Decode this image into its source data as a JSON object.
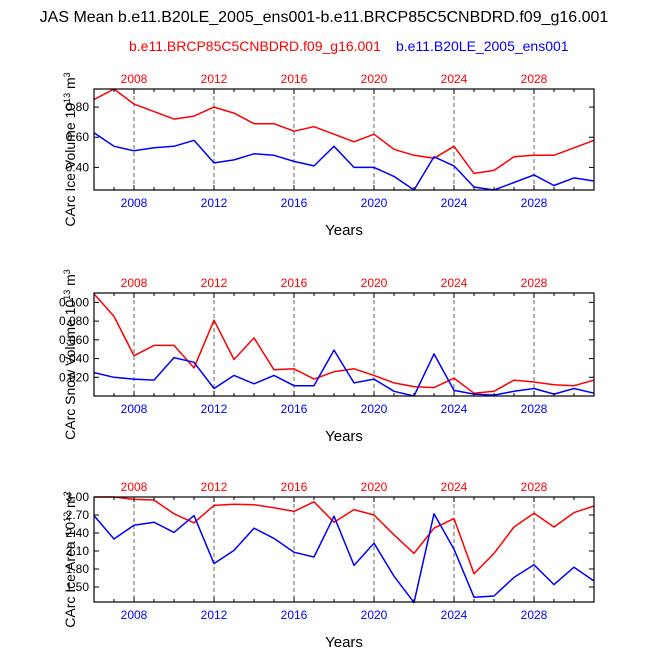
{
  "figure": {
    "title": "JAS Mean b.e11.B20LE_2005_ens001-b.e11.BRCP85C5CNBDRD.f09_g16.001",
    "legend_red": "b.e11.BRCP85C5CNBDRD.f09_g16.001",
    "legend_blue": "b.e11.B20LE_2005_ens001",
    "colors": {
      "red": "#ff0000",
      "blue": "#0000ff",
      "axis": "#000000",
      "grid": "#666666"
    }
  },
  "chart_data": [
    {
      "type": "line",
      "title": "",
      "xlabel": "Years",
      "ylabel_main": "CArc Ice Volume 10",
      "ylabel_exp": "13",
      "ylabel_unit": " m",
      "ylabel_unit_exp": "3",
      "xlim": [
        2006,
        2031
      ],
      "ylim": [
        0.25,
        0.92
      ],
      "yticks": [
        0.4,
        0.6,
        0.8
      ],
      "ytick_labels": [
        "0.40",
        "0.60",
        "0.80"
      ],
      "xticks": [
        2008,
        2012,
        2016,
        2020,
        2024,
        2028
      ],
      "xtick_labels": [
        "2008",
        "2012",
        "2016",
        "2020",
        "2024",
        "2028"
      ],
      "x": [
        2006,
        2007,
        2008,
        2009,
        2010,
        2011,
        2012,
        2013,
        2014,
        2015,
        2016,
        2017,
        2018,
        2019,
        2020,
        2021,
        2022,
        2023,
        2024,
        2025,
        2026,
        2027,
        2028,
        2029,
        2030,
        2031
      ],
      "series": [
        {
          "name": "b.e11.BRCP85C5CNBDRD.f09_g16.001",
          "color": "#ff0000",
          "values": [
            0.85,
            0.92,
            0.82,
            0.77,
            0.72,
            0.74,
            0.8,
            0.76,
            0.69,
            0.69,
            0.64,
            0.67,
            0.62,
            0.57,
            0.62,
            0.52,
            0.48,
            0.46,
            0.54,
            0.36,
            0.38,
            0.47,
            0.48,
            0.48,
            0.53,
            0.58
          ]
        },
        {
          "name": "b.e11.B20LE_2005_ens001",
          "color": "#0000ff",
          "values": [
            0.63,
            0.54,
            0.51,
            0.53,
            0.54,
            0.58,
            0.43,
            0.45,
            0.49,
            0.48,
            0.44,
            0.41,
            0.54,
            0.4,
            0.4,
            0.34,
            0.25,
            0.47,
            0.41,
            0.27,
            0.25,
            0.3,
            0.35,
            0.28,
            0.33,
            0.31
          ]
        }
      ]
    },
    {
      "type": "line",
      "title": "",
      "xlabel": "Years",
      "ylabel_main": "CArc Snow Volume 10",
      "ylabel_exp": "13",
      "ylabel_unit": " m",
      "ylabel_unit_exp": "3",
      "xlim": [
        2006,
        2031
      ],
      "ylim": [
        0.0,
        0.11
      ],
      "yticks": [
        0.02,
        0.04,
        0.06,
        0.08,
        0.1
      ],
      "ytick_labels": [
        "0.020",
        "0.040",
        "0.060",
        "0.080",
        "0.100"
      ],
      "xticks": [
        2008,
        2012,
        2016,
        2020,
        2024,
        2028
      ],
      "xtick_labels": [
        "2008",
        "2012",
        "2016",
        "2020",
        "2024",
        "2028"
      ],
      "x": [
        2006,
        2007,
        2008,
        2009,
        2010,
        2011,
        2012,
        2013,
        2014,
        2015,
        2016,
        2017,
        2018,
        2019,
        2020,
        2021,
        2022,
        2023,
        2024,
        2025,
        2026,
        2027,
        2028,
        2029,
        2030,
        2031
      ],
      "series": [
        {
          "name": "b.e11.BRCP85C5CNBDRD.f09_g16.001",
          "color": "#ff0000",
          "values": [
            0.109,
            0.085,
            0.043,
            0.054,
            0.054,
            0.03,
            0.081,
            0.039,
            0.062,
            0.028,
            0.029,
            0.018,
            0.026,
            0.029,
            0.022,
            0.014,
            0.01,
            0.009,
            0.019,
            0.003,
            0.005,
            0.017,
            0.015,
            0.012,
            0.011,
            0.017
          ]
        },
        {
          "name": "b.e11.B20LE_2005_ens001",
          "color": "#0000ff",
          "values": [
            0.025,
            0.02,
            0.018,
            0.017,
            0.041,
            0.036,
            0.008,
            0.022,
            0.013,
            0.022,
            0.011,
            0.011,
            0.049,
            0.014,
            0.018,
            0.005,
            0.0,
            0.045,
            0.006,
            0.002,
            0.001,
            0.005,
            0.008,
            0.002,
            0.008,
            0.003
          ]
        }
      ]
    },
    {
      "type": "line",
      "title": "",
      "xlabel": "Years",
      "ylabel_main": "CArc Ice Area 10",
      "ylabel_exp": "12",
      "ylabel_unit": " m",
      "ylabel_unit_exp": "2",
      "xlim": [
        2006,
        2031
      ],
      "ylim": [
        1.25,
        3.0
      ],
      "yticks": [
        1.5,
        1.8,
        2.1,
        2.4,
        2.7,
        3.0
      ],
      "ytick_labels": [
        "1.50",
        "1.80",
        "2.10",
        "2.40",
        "2.70",
        "3.00"
      ],
      "xticks": [
        2008,
        2012,
        2016,
        2020,
        2024,
        2028
      ],
      "xtick_labels": [
        "2008",
        "2012",
        "2016",
        "2020",
        "2024",
        "2028"
      ],
      "x": [
        2006,
        2007,
        2008,
        2009,
        2010,
        2011,
        2012,
        2013,
        2014,
        2015,
        2016,
        2017,
        2018,
        2019,
        2020,
        2021,
        2022,
        2023,
        2024,
        2025,
        2026,
        2027,
        2028,
        2029,
        2030,
        2031
      ],
      "series": [
        {
          "name": "b.e11.BRCP85C5CNBDRD.f09_g16.001",
          "color": "#ff0000",
          "values": [
            3.0,
            3.0,
            2.96,
            2.95,
            2.72,
            2.57,
            2.86,
            2.88,
            2.87,
            2.82,
            2.76,
            2.92,
            2.58,
            2.79,
            2.7,
            2.37,
            2.06,
            2.48,
            2.64,
            1.72,
            2.06,
            2.5,
            2.73,
            2.5,
            2.74,
            2.85
          ]
        },
        {
          "name": "b.e11.B20LE_2005_ens001",
          "color": "#0000ff",
          "values": [
            2.69,
            2.3,
            2.53,
            2.58,
            2.41,
            2.69,
            1.89,
            2.11,
            2.48,
            2.31,
            2.08,
            2.0,
            2.68,
            1.86,
            2.23,
            1.68,
            1.24,
            2.72,
            2.13,
            1.33,
            1.35,
            1.66,
            1.87,
            1.54,
            1.83,
            1.6
          ]
        }
      ]
    }
  ]
}
